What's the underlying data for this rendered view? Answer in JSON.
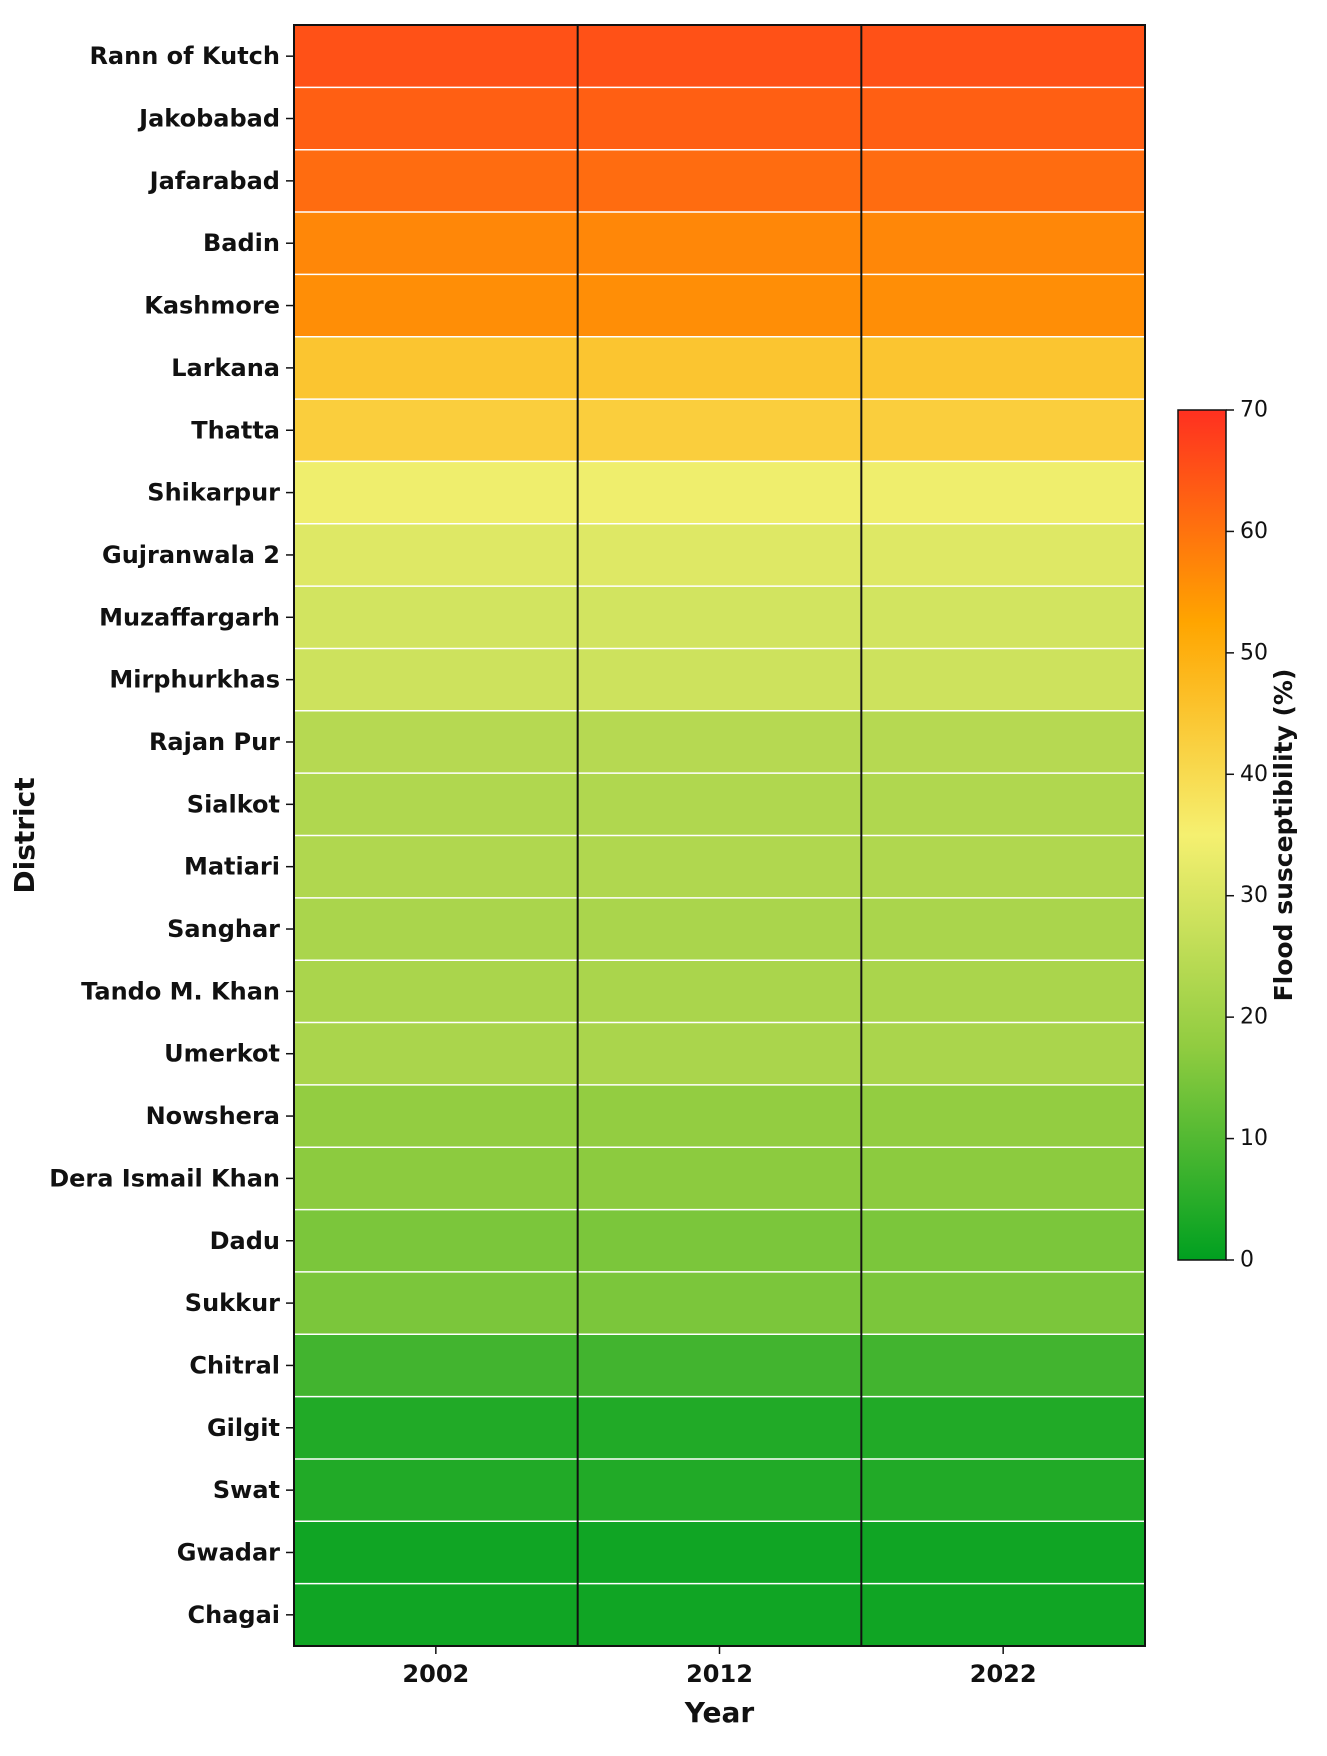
{
  "chart_data": {
    "type": "heatmap",
    "title": "",
    "xlabel": "Year",
    "ylabel": "District",
    "x": [
      "2002",
      "2012",
      "2022"
    ],
    "y": [
      "Rann of Kutch",
      "Jakobabad",
      "Jafarabad",
      "Badin",
      "Kashmore",
      "Larkana",
      "Thatta",
      "Shikarpur",
      "Gujranwala 2",
      "Muzaffargarh",
      "Mirphurkhas",
      "Rajan Pur",
      "Sialkot",
      "Matiari",
      "Sanghar",
      "Tando M. Khan",
      "Umerkot",
      "Nowshera",
      "Dera Ismail Khan",
      "Dadu",
      "Sukkur",
      "Chitral",
      "Gilgit",
      "Swat",
      "Gwadar",
      "Chagai"
    ],
    "values": [
      [
        65,
        65,
        65
      ],
      [
        63,
        63,
        63
      ],
      [
        61,
        61,
        61
      ],
      [
        57,
        57,
        57
      ],
      [
        56,
        56,
        56
      ],
      [
        45,
        45,
        45
      ],
      [
        43,
        43,
        43
      ],
      [
        34,
        34,
        34
      ],
      [
        31,
        31,
        31
      ],
      [
        29,
        29,
        29
      ],
      [
        28,
        28,
        28
      ],
      [
        24,
        24,
        24
      ],
      [
        23,
        23,
        23
      ],
      [
        23,
        23,
        23
      ],
      [
        22,
        22,
        22
      ],
      [
        22,
        22,
        22
      ],
      [
        22,
        22,
        22
      ],
      [
        18,
        18,
        18
      ],
      [
        17,
        17,
        17
      ],
      [
        15,
        15,
        15
      ],
      [
        15,
        15,
        15
      ],
      [
        8,
        8,
        8
      ],
      [
        4,
        4,
        4
      ],
      [
        4,
        4,
        4
      ],
      [
        2,
        2,
        2
      ],
      [
        2,
        2,
        2
      ]
    ],
    "colorbar": {
      "label": "Flood susceptibility (%)",
      "range": [
        0,
        70
      ],
      "ticks": [
        0,
        10,
        20,
        30,
        40,
        50,
        60,
        70
      ],
      "colors": [
        "#00a020",
        "#90cc40",
        "#f5f070",
        "#ffa500",
        "#ff3020"
      ]
    }
  }
}
